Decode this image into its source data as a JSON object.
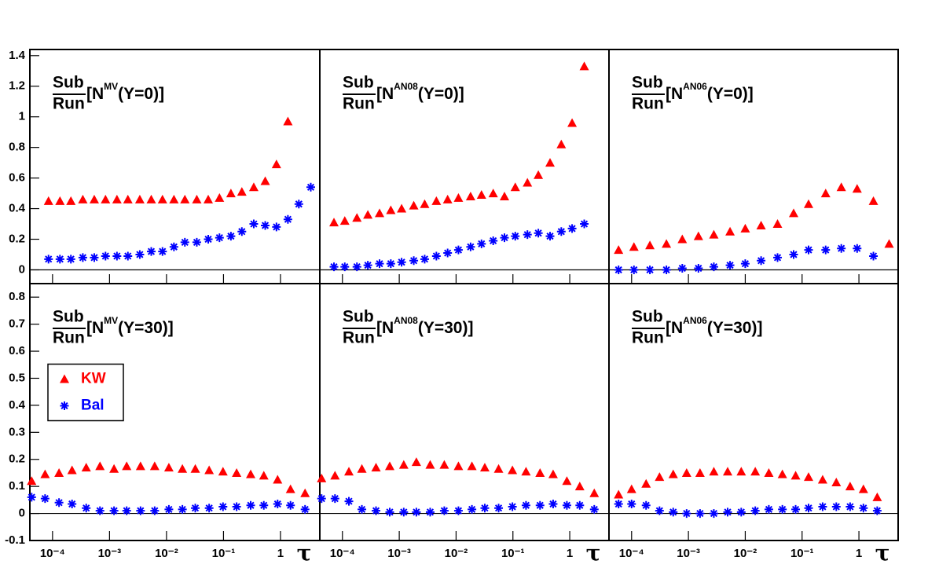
{
  "chart_data": [
    {
      "type": "scatter",
      "log_x": true,
      "zero_line": true,
      "title": {
        "numerator": "Sub",
        "denominator": "Run",
        "prefix": "[N",
        "superscript": "MV",
        "suffix": "(Y=0)]"
      },
      "x": [
        8.5e-05,
        0.000135,
        0.00021,
        0.00034,
        0.00054,
        0.00085,
        0.00135,
        0.0021,
        0.0034,
        0.0054,
        0.0085,
        0.0135,
        0.021,
        0.034,
        0.054,
        0.085,
        0.135,
        0.21,
        0.34,
        0.54,
        0.85,
        1.35,
        2.1,
        3.4
      ],
      "series": [
        {
          "color": "#ff0000",
          "marker": "triangle",
          "values": [
            0.45,
            0.45,
            0.45,
            0.46,
            0.46,
            0.46,
            0.46,
            0.46,
            0.46,
            0.46,
            0.46,
            0.46,
            0.46,
            0.46,
            0.46,
            0.47,
            0.5,
            0.51,
            0.54,
            0.58,
            0.69,
            0.97,
            null,
            null
          ]
        },
        {
          "color": "#0000ff",
          "marker": "asterisk",
          "values": [
            0.07,
            0.07,
            0.07,
            0.08,
            0.08,
            0.09,
            0.09,
            0.09,
            0.1,
            0.12,
            0.12,
            0.15,
            0.18,
            0.18,
            0.2,
            0.21,
            0.22,
            0.25,
            0.3,
            0.29,
            0.28,
            0.33,
            0.43,
            0.54
          ]
        }
      ],
      "xlim": [
        4e-05,
        4.9
      ],
      "ylim": [
        -0.09,
        1.44
      ],
      "xticks": [
        0.0001,
        0.001,
        0.01,
        0.1,
        1
      ],
      "yticks": [
        0,
        0.2,
        0.4,
        0.6,
        0.8,
        1,
        1.2,
        1.4
      ]
    },
    {
      "type": "scatter",
      "log_x": true,
      "zero_line": true,
      "title": {
        "numerator": "Sub",
        "denominator": "Run",
        "prefix": "[N",
        "superscript": "AN08",
        "suffix": "(Y=0)]"
      },
      "x": [
        7.1e-05,
        0.00011,
        0.00018,
        0.00028,
        0.00045,
        0.00071,
        0.0011,
        0.0018,
        0.0028,
        0.0045,
        0.0071,
        0.011,
        0.018,
        0.028,
        0.045,
        0.071,
        0.11,
        0.18,
        0.28,
        0.45,
        0.71,
        1.1,
        1.8
      ],
      "series": [
        {
          "color": "#ff0000",
          "marker": "triangle",
          "values": [
            0.31,
            0.32,
            0.34,
            0.36,
            0.37,
            0.39,
            0.4,
            0.42,
            0.43,
            0.45,
            0.46,
            0.47,
            0.48,
            0.49,
            0.5,
            0.48,
            0.54,
            0.57,
            0.62,
            0.7,
            0.82,
            0.96,
            1.33
          ]
        },
        {
          "color": "#0000ff",
          "marker": "asterisk",
          "values": [
            0.02,
            0.02,
            0.02,
            0.03,
            0.04,
            0.04,
            0.05,
            0.06,
            0.07,
            0.09,
            0.11,
            0.13,
            0.15,
            0.17,
            0.19,
            0.21,
            0.22,
            0.23,
            0.24,
            0.22,
            0.25,
            0.27,
            0.3
          ]
        }
      ],
      "xlim": [
        4e-05,
        4.9
      ],
      "ylim": [
        -0.09,
        1.44
      ],
      "xticks": [
        0.0001,
        0.001,
        0.01,
        0.1,
        1
      ]
    },
    {
      "type": "scatter",
      "log_x": true,
      "zero_line": true,
      "title": {
        "numerator": "Sub",
        "denominator": "Run",
        "prefix": "[N",
        "superscript": "AN06",
        "suffix": "(Y=0)]"
      },
      "x": [
        5.9e-05,
        0.00011,
        0.00021,
        0.00041,
        0.00078,
        0.0015,
        0.0028,
        0.0054,
        0.01,
        0.019,
        0.037,
        0.071,
        0.13,
        0.26,
        0.49,
        0.93,
        1.8,
        3.4
      ],
      "series": [
        {
          "color": "#ff0000",
          "marker": "triangle",
          "values": [
            0.13,
            0.15,
            0.16,
            0.17,
            0.2,
            0.22,
            0.23,
            0.25,
            0.27,
            0.29,
            0.3,
            0.37,
            0.43,
            0.5,
            0.54,
            0.53,
            0.45,
            0.17
          ]
        },
        {
          "color": "#0000ff",
          "marker": "asterisk",
          "values": [
            0,
            0,
            0,
            0,
            0.01,
            0.01,
            0.02,
            0.03,
            0.04,
            0.06,
            0.08,
            0.1,
            0.13,
            0.13,
            0.14,
            0.14,
            0.09,
            null
          ]
        }
      ],
      "xlim": [
        4e-05,
        4.9
      ],
      "ylim": [
        -0.09,
        1.44
      ],
      "xticks": [
        0.0001,
        0.001,
        0.01,
        0.1,
        1
      ]
    },
    {
      "type": "scatter",
      "log_x": true,
      "zero_line": true,
      "legend": "center left",
      "xlabel": "τ",
      "title": {
        "numerator": "Sub",
        "denominator": "Run",
        "prefix": "[N",
        "superscript": "MV",
        "suffix": "(Y=30)]"
      },
      "x": [
        4.3e-05,
        7.4e-05,
        0.00013,
        0.00022,
        0.00039,
        0.00068,
        0.0012,
        0.002,
        0.0035,
        0.0062,
        0.011,
        0.019,
        0.032,
        0.056,
        0.098,
        0.17,
        0.3,
        0.51,
        0.89,
        1.5,
        2.7
      ],
      "series": [
        {
          "name": "KW",
          "color": "#ff0000",
          "marker": "triangle",
          "values": [
            0.12,
            0.145,
            0.15,
            0.16,
            0.17,
            0.175,
            0.165,
            0.175,
            0.175,
            0.175,
            0.17,
            0.165,
            0.165,
            0.16,
            0.155,
            0.15,
            0.145,
            0.14,
            0.125,
            0.09,
            0.075
          ]
        },
        {
          "name": "Bal",
          "color": "#0000ff",
          "marker": "asterisk",
          "values": [
            0.06,
            0.055,
            0.04,
            0.035,
            0.02,
            0.01,
            0.01,
            0.01,
            0.01,
            0.01,
            0.015,
            0.015,
            0.02,
            0.02,
            0.025,
            0.025,
            0.03,
            0.03,
            0.035,
            0.03,
            0.015
          ]
        }
      ],
      "xlim": [
        4e-05,
        4.9
      ],
      "ylim": [
        -0.1,
        0.85
      ],
      "xticks": [
        {
          "value": 0.0001,
          "label": "10⁻⁴"
        },
        {
          "value": 0.001,
          "label": "10⁻³"
        },
        {
          "value": 0.01,
          "label": "10⁻²"
        },
        {
          "value": 0.1,
          "label": "10⁻¹"
        },
        1
      ],
      "yticks": [
        -0.1,
        0,
        0.1,
        0.2,
        0.3,
        0.4,
        0.5,
        0.6,
        0.7,
        0.8
      ]
    },
    {
      "type": "scatter",
      "log_x": true,
      "zero_line": true,
      "xlabel": "τ",
      "title": {
        "numerator": "Sub",
        "denominator": "Run",
        "prefix": "[N",
        "superscript": "AN08",
        "suffix": "(Y=30)]"
      },
      "x": [
        4.3e-05,
        7.4e-05,
        0.00013,
        0.00022,
        0.00039,
        0.00068,
        0.0012,
        0.002,
        0.0035,
        0.0062,
        0.011,
        0.019,
        0.032,
        0.056,
        0.098,
        0.17,
        0.3,
        0.51,
        0.89,
        1.5,
        2.7
      ],
      "series": [
        {
          "color": "#ff0000",
          "marker": "triangle",
          "values": [
            0.13,
            0.14,
            0.155,
            0.165,
            0.17,
            0.175,
            0.18,
            0.19,
            0.18,
            0.18,
            0.175,
            0.175,
            0.17,
            0.165,
            0.16,
            0.155,
            0.15,
            0.145,
            0.12,
            0.1,
            0.075
          ]
        },
        {
          "color": "#0000ff",
          "marker": "asterisk",
          "values": [
            0.055,
            0.055,
            0.045,
            0.015,
            0.01,
            0.005,
            0.005,
            0.005,
            0.005,
            0.01,
            0.01,
            0.015,
            0.02,
            0.02,
            0.025,
            0.03,
            0.03,
            0.035,
            0.03,
            0.03,
            0.015
          ]
        }
      ],
      "xlim": [
        4e-05,
        4.9
      ],
      "ylim": [
        -0.1,
        0.85
      ],
      "xticks": [
        {
          "value": 0.0001,
          "label": "10⁻⁴"
        },
        {
          "value": 0.001,
          "label": "10⁻³"
        },
        {
          "value": 0.01,
          "label": "10⁻²"
        },
        {
          "value": 0.1,
          "label": "10⁻¹"
        },
        1
      ]
    },
    {
      "type": "scatter",
      "log_x": true,
      "zero_line": true,
      "xlabel": "τ",
      "title": {
        "numerator": "Sub",
        "denominator": "Run",
        "prefix": "[N",
        "superscript": "AN06",
        "suffix": "(Y=30)]"
      },
      "x": [
        5.9e-05,
        0.0001,
        0.00018,
        0.00031,
        0.00054,
        0.00093,
        0.0016,
        0.0028,
        0.0049,
        0.0085,
        0.015,
        0.026,
        0.045,
        0.077,
        0.13,
        0.23,
        0.4,
        0.7,
        1.2,
        2.1
      ],
      "series": [
        {
          "color": "#ff0000",
          "marker": "triangle",
          "values": [
            0.07,
            0.09,
            0.11,
            0.135,
            0.145,
            0.15,
            0.15,
            0.155,
            0.155,
            0.155,
            0.155,
            0.15,
            0.145,
            0.14,
            0.135,
            0.125,
            0.115,
            0.1,
            0.09,
            0.06
          ]
        },
        {
          "color": "#0000ff",
          "marker": "asterisk",
          "values": [
            0.035,
            0.035,
            0.03,
            0.01,
            0.005,
            0,
            0,
            0,
            0.005,
            0.005,
            0.01,
            0.015,
            0.015,
            0.015,
            0.02,
            0.025,
            0.025,
            0.025,
            0.02,
            0.01
          ]
        }
      ],
      "xlim": [
        4e-05,
        4.9
      ],
      "ylim": [
        -0.1,
        0.85
      ],
      "xticks": [
        {
          "value": 0.0001,
          "label": "10⁻⁴"
        },
        {
          "value": 0.001,
          "label": "10⁻³"
        },
        {
          "value": 0.01,
          "label": "10⁻²"
        },
        {
          "value": 0.1,
          "label": "10⁻¹"
        },
        1
      ]
    }
  ]
}
